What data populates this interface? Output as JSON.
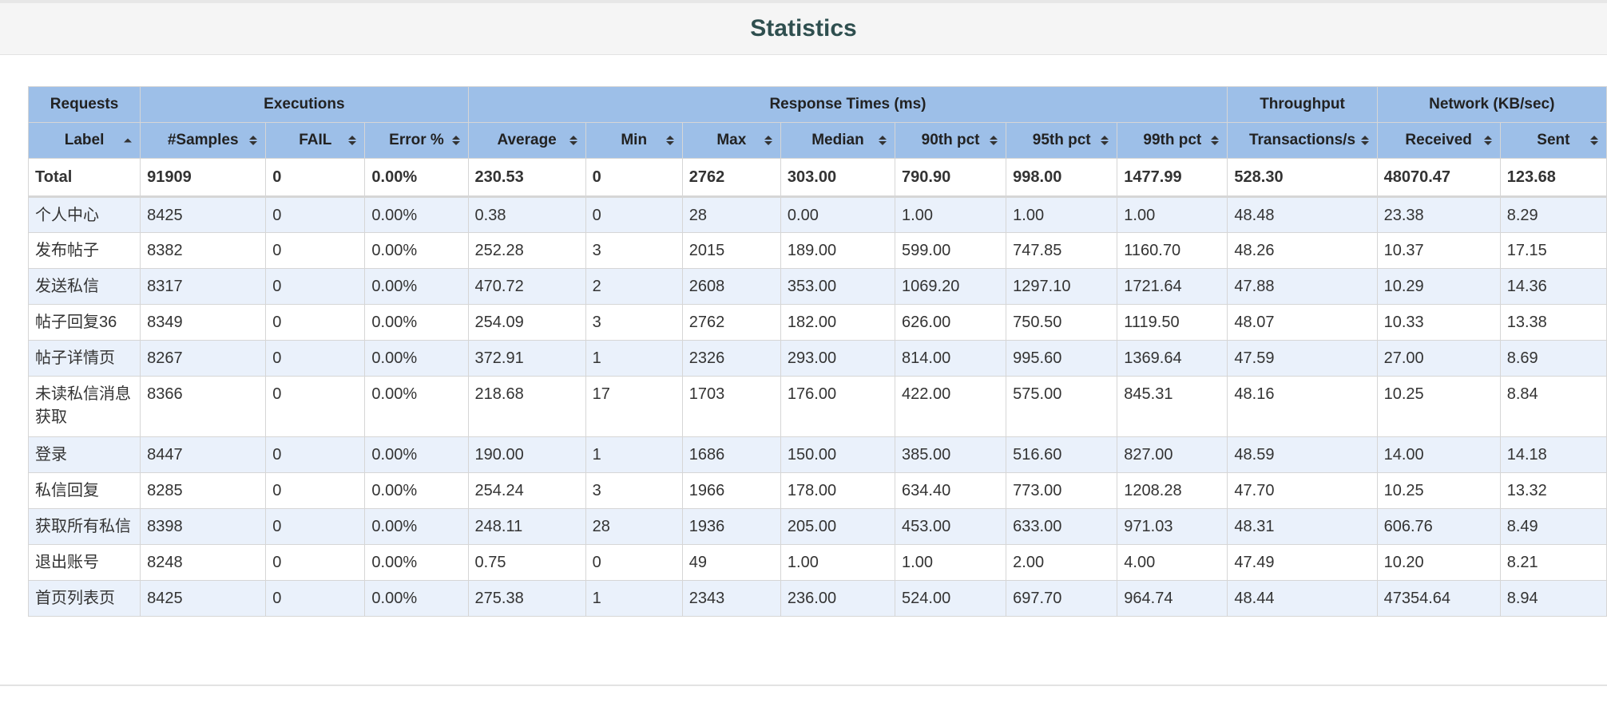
{
  "title": "Statistics",
  "group_headers": [
    {
      "label": "Requests",
      "span": 1
    },
    {
      "label": "Executions",
      "span": 3
    },
    {
      "label": "Response Times (ms)",
      "span": 7
    },
    {
      "label": "Throughput",
      "span": 1
    },
    {
      "label": "Network (KB/sec)",
      "span": 2
    }
  ],
  "columns": [
    {
      "label": "Label",
      "sort": "asc"
    },
    {
      "label": "#Samples",
      "sort": "both"
    },
    {
      "label": "FAIL",
      "sort": "both"
    },
    {
      "label": "Error %",
      "sort": "both"
    },
    {
      "label": "Average",
      "sort": "both"
    },
    {
      "label": "Min",
      "sort": "both"
    },
    {
      "label": "Max",
      "sort": "both"
    },
    {
      "label": "Median",
      "sort": "both"
    },
    {
      "label": "90th pct",
      "sort": "both"
    },
    {
      "label": "95th pct",
      "sort": "both"
    },
    {
      "label": "99th pct",
      "sort": "both"
    },
    {
      "label": "Transactions/s",
      "sort": "both"
    },
    {
      "label": "Received",
      "sort": "both"
    },
    {
      "label": "Sent",
      "sort": "both"
    }
  ],
  "total": [
    "Total",
    "91909",
    "0",
    "0.00%",
    "230.53",
    "0",
    "2762",
    "303.00",
    "790.90",
    "998.00",
    "1477.99",
    "528.30",
    "48070.47",
    "123.68"
  ],
  "rows": [
    [
      "个人中心",
      "8425",
      "0",
      "0.00%",
      "0.38",
      "0",
      "28",
      "0.00",
      "1.00",
      "1.00",
      "1.00",
      "48.48",
      "23.38",
      "8.29"
    ],
    [
      "发布帖子",
      "8382",
      "0",
      "0.00%",
      "252.28",
      "3",
      "2015",
      "189.00",
      "599.00",
      "747.85",
      "1160.70",
      "48.26",
      "10.37",
      "17.15"
    ],
    [
      "发送私信",
      "8317",
      "0",
      "0.00%",
      "470.72",
      "2",
      "2608",
      "353.00",
      "1069.20",
      "1297.10",
      "1721.64",
      "47.88",
      "10.29",
      "14.36"
    ],
    [
      "帖子回复36",
      "8349",
      "0",
      "0.00%",
      "254.09",
      "3",
      "2762",
      "182.00",
      "626.00",
      "750.50",
      "1119.50",
      "48.07",
      "10.33",
      "13.38"
    ],
    [
      "帖子详情页",
      "8267",
      "0",
      "0.00%",
      "372.91",
      "1",
      "2326",
      "293.00",
      "814.00",
      "995.60",
      "1369.64",
      "47.59",
      "27.00",
      "8.69"
    ],
    [
      "未读私信消息获取",
      "8366",
      "0",
      "0.00%",
      "218.68",
      "17",
      "1703",
      "176.00",
      "422.00",
      "575.00",
      "845.31",
      "48.16",
      "10.25",
      "8.84"
    ],
    [
      "登录",
      "8447",
      "0",
      "0.00%",
      "190.00",
      "1",
      "1686",
      "150.00",
      "385.00",
      "516.60",
      "827.00",
      "48.59",
      "14.00",
      "14.18"
    ],
    [
      "私信回复",
      "8285",
      "0",
      "0.00%",
      "254.24",
      "3",
      "1966",
      "178.00",
      "634.40",
      "773.00",
      "1208.28",
      "47.70",
      "10.25",
      "13.32"
    ],
    [
      "获取所有私信",
      "8398",
      "0",
      "0.00%",
      "248.11",
      "28",
      "1936",
      "205.00",
      "453.00",
      "633.00",
      "971.03",
      "48.31",
      "606.76",
      "8.49"
    ],
    [
      "退出账号",
      "8248",
      "0",
      "0.00%",
      "0.75",
      "0",
      "49",
      "1.00",
      "1.00",
      "2.00",
      "4.00",
      "47.49",
      "10.20",
      "8.21"
    ],
    [
      "首页列表页",
      "8425",
      "0",
      "0.00%",
      "275.38",
      "1",
      "2343",
      "236.00",
      "524.00",
      "697.70",
      "964.74",
      "48.44",
      "47354.64",
      "8.94"
    ]
  ]
}
